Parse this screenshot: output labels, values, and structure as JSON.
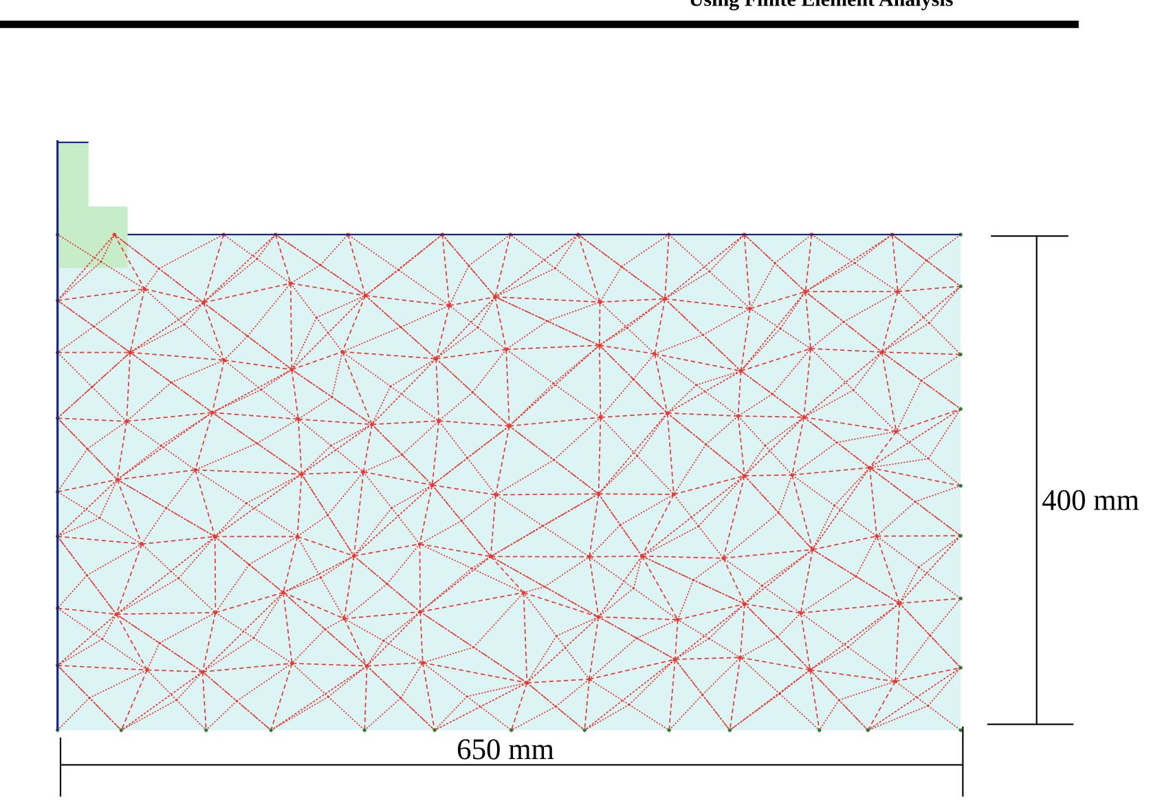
{
  "header": {
    "title": "Using Finite Element Analysis"
  },
  "dimensions": {
    "height": {
      "label": "400 mm"
    },
    "width": {
      "label": "650 mm"
    }
  }
}
